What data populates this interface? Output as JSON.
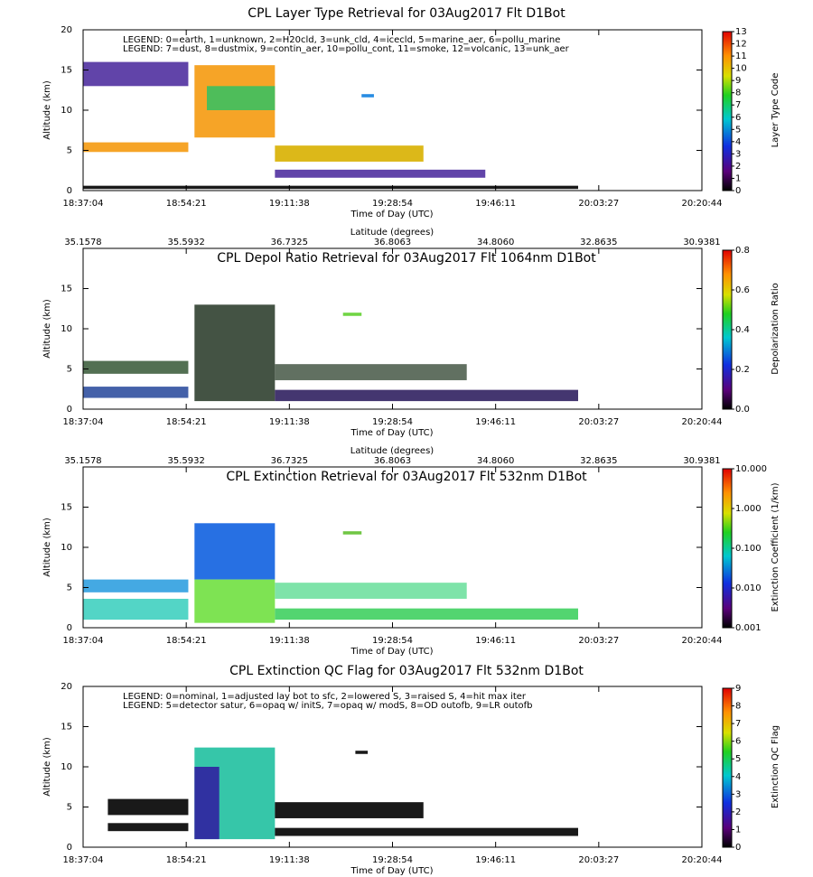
{
  "chart_data": [
    {
      "type": "curtain",
      "title": "CPL Layer Type Retrieval for 03Aug2017 Flt D1Bot",
      "legend_lines": [
        "LEGEND: 0=earth, 1=unknown, 2=H20cld, 3=unk_cld, 4=icecld, 5=marine_aer, 6=pollu_marine",
        "LEGEND: 7=dust, 8=dustmix, 9=contin_aer, 10=pollu_cont, 11=smoke, 12=volcanic, 13=unk_aer"
      ],
      "xticks": [
        "18:37:04",
        "18:54:21",
        "19:11:38",
        "19:28:54",
        "19:46:11",
        "20:03:27",
        "20:20:44"
      ],
      "xlabel": "Time of Day (UTC)",
      "ylabel": "Altitude (km)",
      "ylim": [
        0,
        20
      ],
      "yticks": [
        0,
        5,
        10,
        15,
        20
      ],
      "x2label": "Latitude (degrees)",
      "x2ticks": [
        35.1578,
        35.5932,
        36.7325,
        36.8063,
        {
          "value": 34.806,
          "label": "34.8060"
        },
        32.8635,
        30.9381
      ],
      "colorbar_label": "Layer Type Code",
      "colorbar_lim": [
        0,
        13
      ],
      "colorbar_ticks": [
        0,
        1,
        2,
        3,
        4,
        5,
        6,
        7,
        8,
        9,
        10,
        11,
        12,
        13
      ]
    },
    {
      "type": "curtain",
      "title": "CPL Depol Ratio Retrieval for 03Aug2017 Flt 1064nm D1Bot",
      "xticks": [
        "18:37:04",
        "18:54:21",
        "19:11:38",
        "19:28:54",
        "19:46:11",
        "20:03:27",
        "20:20:44"
      ],
      "xlabel": "Time of Day (UTC)",
      "ylabel": "Altitude (km)",
      "ylim": [
        0,
        20
      ],
      "yticks": [
        0,
        5,
        10,
        15
      ],
      "x2label": "Latitude (degrees)",
      "x2ticks": [
        35.1578,
        35.5932,
        36.7325,
        36.8063,
        {
          "value": 34.806,
          "label": "34.8060"
        },
        32.8635,
        30.9381
      ],
      "colorbar_label": "Depolarization Ratio",
      "colorbar_lim": [
        0,
        0.8
      ],
      "colorbar_ticks": [
        {
          "value": 0,
          "label": "0.0"
        },
        0.2,
        0.4,
        0.6,
        0.8
      ]
    },
    {
      "type": "curtain",
      "title": "CPL Extinction Retrieval for 03Aug2017 Flt 532nm D1Bot",
      "xticks": [
        "18:37:04",
        "18:54:21",
        "19:11:38",
        "19:28:54",
        "19:46:11",
        "20:03:27",
        "20:20:44"
      ],
      "xlabel": "Time of Day (UTC)",
      "ylabel": "Altitude (km)",
      "ylim": [
        0,
        20
      ],
      "yticks": [
        0,
        5,
        10,
        15
      ],
      "colorbar_label": "Extinction Coefficient (1/km)",
      "colorbar_log": true,
      "colorbar_lim": [
        0.001,
        10
      ],
      "colorbar_ticks": [
        0.001,
        {
          "value": 0.01,
          "label": "0.010"
        },
        {
          "value": 0.1,
          "label": "0.100"
        },
        {
          "value": 1,
          "label": "1.000"
        },
        {
          "value": 10,
          "label": "10.000"
        }
      ]
    },
    {
      "type": "curtain",
      "title": "CPL Extinction QC Flag for 03Aug2017 Flt 532nm D1Bot",
      "legend_lines": [
        "LEGEND: 0=nominal, 1=adjusted lay bot to sfc, 2=lowered S, 3=raised S, 4=hit max iter",
        "LEGEND: 5=detector satur, 6=opaq w/ initS, 7=opaq w/ modS, 8=OD outofb, 9=LR outofb"
      ],
      "xticks": [
        "18:37:04",
        "18:54:21",
        "19:11:38",
        "19:28:54",
        "19:46:11",
        "20:03:27",
        "20:20:44"
      ],
      "xlabel": "Time of Day (UTC)",
      "ylabel": "Altitude (km)",
      "ylim": [
        0,
        20
      ],
      "yticks": [
        0,
        5,
        10,
        15,
        20
      ],
      "colorbar_label": "Extinction QC Flag",
      "colorbar_lim": [
        0,
        9
      ],
      "colorbar_ticks": [
        0,
        1,
        2,
        3,
        4,
        5,
        6,
        7,
        8,
        9
      ]
    }
  ]
}
